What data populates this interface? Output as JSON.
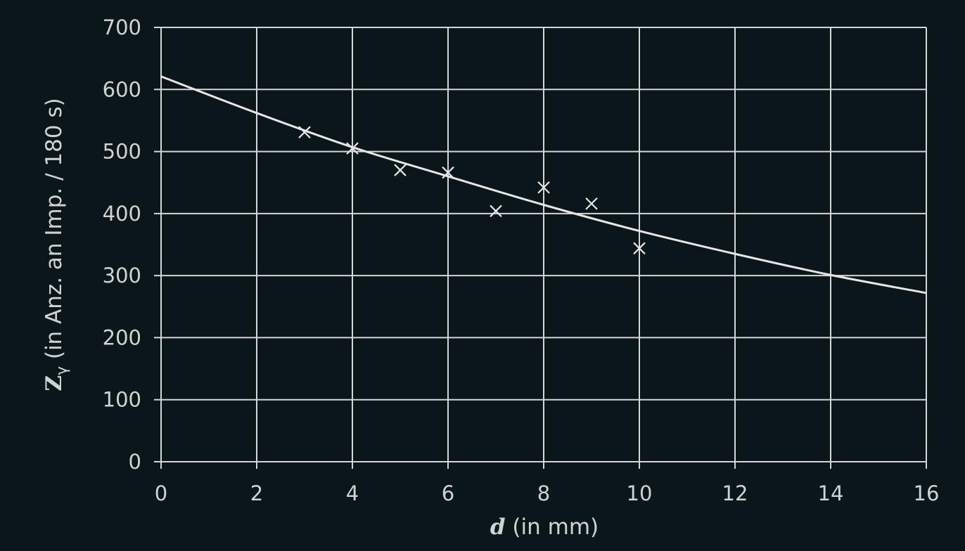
{
  "chart_data": {
    "type": "scatter",
    "xlabel": {
      "symbol": "d",
      "rest": " (in mm)"
    },
    "ylabel": {
      "symbol": "Z",
      "subscript": "γ",
      "rest": " (in Anz. an Imp. / 180 s)"
    },
    "xlim": [
      0,
      16
    ],
    "ylim": [
      0,
      700
    ],
    "xticks": [
      0,
      2,
      4,
      6,
      8,
      10,
      12,
      14,
      16
    ],
    "yticks": [
      0,
      100,
      200,
      300,
      400,
      500,
      600,
      700
    ],
    "grid": true,
    "series": [
      {
        "marker": "x",
        "x": [
          3,
          4,
          5,
          6,
          7,
          8,
          9,
          10
        ],
        "y": [
          531,
          505,
          470,
          466,
          404,
          442,
          416,
          344
        ]
      }
    ],
    "fit_curve": {
      "x": [
        0,
        2,
        4,
        6,
        8,
        10,
        12,
        14,
        16
      ],
      "y": [
        621,
        562,
        507,
        460,
        414,
        372,
        335,
        301,
        272
      ]
    },
    "colors": {
      "background": "#0b161b",
      "foreground": "#e6e6e6"
    }
  }
}
